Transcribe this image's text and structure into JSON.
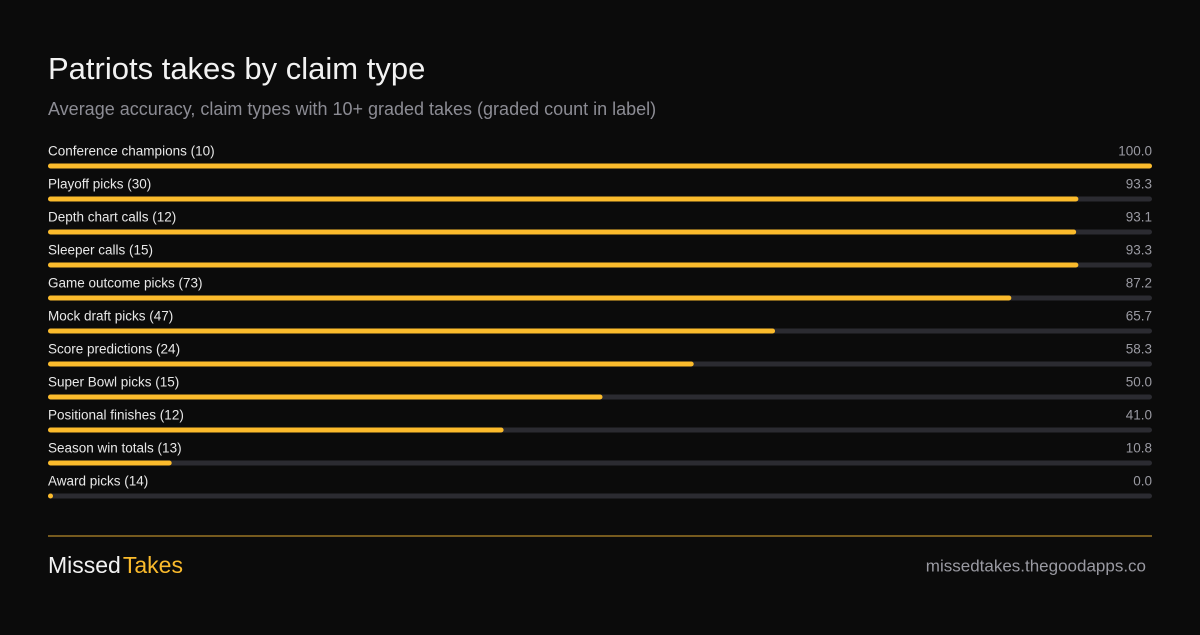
{
  "chart_data": {
    "type": "hbar",
    "title": "Patriots takes by claim type",
    "subtitle": "Average accuracy, claim types with 10+ graded takes (graded count in label)",
    "categories": [
      "Conference champions (10)",
      "Playoff picks (30)",
      "Depth chart calls (12)",
      "Sleeper calls (15)",
      "Game outcome picks (73)",
      "Mock draft picks (47)",
      "Score predictions (24)",
      "Super Bowl picks (15)",
      "Positional finishes (12)",
      "Season win totals (13)",
      "Award picks (14)"
    ],
    "values": [
      100,
      93.3,
      93.1,
      93.3,
      87.2,
      65.7,
      58.3,
      50,
      41,
      10.8,
      0
    ],
    "value_labels": [
      "100.0",
      "93.3",
      "93.1",
      "93.3",
      "87.2",
      "65.7",
      "58.3",
      "50.0",
      "41.0",
      "10.8",
      "0.0"
    ],
    "color": "#fbbb2c",
    "xlim": [
      0,
      100
    ]
  },
  "footer": {
    "brand": [
      "Missed",
      "Takes"
    ],
    "url": "missedtakes.thegoodapps.co"
  }
}
